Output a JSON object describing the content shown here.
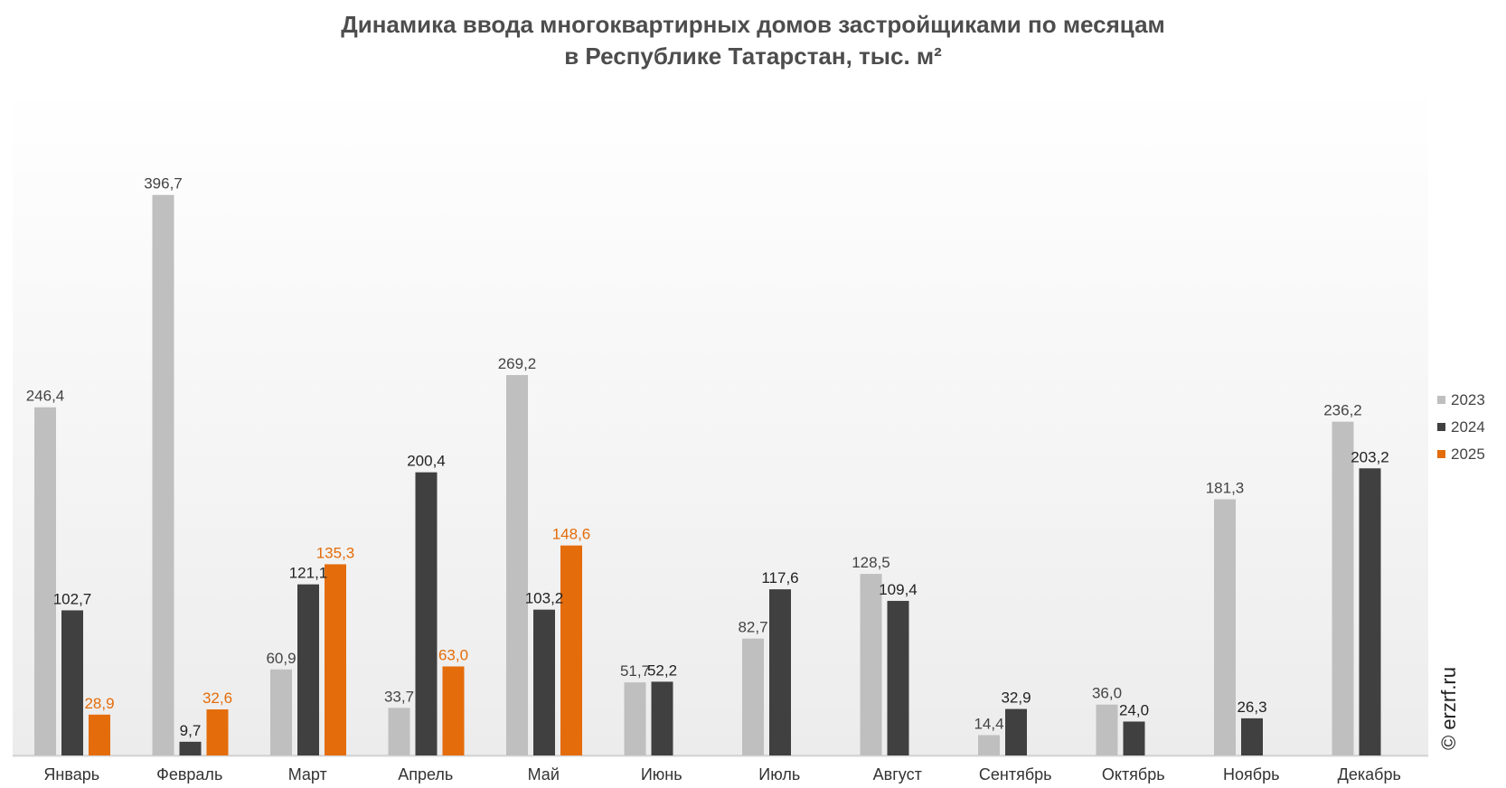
{
  "chart_data": {
    "type": "bar",
    "title_line1": "Динамика ввода многоквартирных домов застройщиками по месяцам",
    "title_line2": "в Республике Татарстан, тыс. м²",
    "categories": [
      "Январь",
      "Февраль",
      "Март",
      "Апрель",
      "Май",
      "Июнь",
      "Июль",
      "Август",
      "Сентябрь",
      "Октябрь",
      "Ноябрь",
      "Декабрь"
    ],
    "series": [
      {
        "name": "2023",
        "color": "#bfbfbf",
        "label_color": "#444444",
        "values": [
          246.4,
          396.7,
          60.9,
          33.7,
          269.2,
          51.7,
          82.7,
          128.5,
          14.4,
          36.0,
          181.3,
          236.2
        ],
        "labels": [
          "246,4",
          "396,7",
          "60,9",
          "33,7",
          "269,2",
          "51,7",
          "82,7",
          "128,5",
          "14,4",
          "36,0",
          "181,3",
          "236,2"
        ]
      },
      {
        "name": "2024",
        "color": "#404040",
        "label_color": "#222222",
        "values": [
          102.7,
          9.7,
          121.1,
          200.4,
          103.2,
          52.2,
          117.6,
          109.4,
          32.9,
          24.0,
          26.3,
          203.2
        ],
        "labels": [
          "102,7",
          "9,7",
          "121,1",
          "200,4",
          "103,2",
          "52,2",
          "117,6",
          "109,4",
          "32,9",
          "24,0",
          "26,3",
          "203,2"
        ]
      },
      {
        "name": "2025",
        "color": "#e46c0a",
        "label_color": "#e46c0a",
        "values": [
          28.9,
          32.6,
          135.3,
          63.0,
          148.6,
          null,
          null,
          null,
          null,
          null,
          null,
          null
        ],
        "labels": [
          "28,9",
          "32,6",
          "135,3",
          "63,0",
          "148,6",
          "",
          "",
          "",
          "",
          "",
          "",
          ""
        ]
      }
    ],
    "ylim": [
      0,
      440
    ],
    "grid": false,
    "legend": "right",
    "watermark": "© erzrf.ru"
  }
}
